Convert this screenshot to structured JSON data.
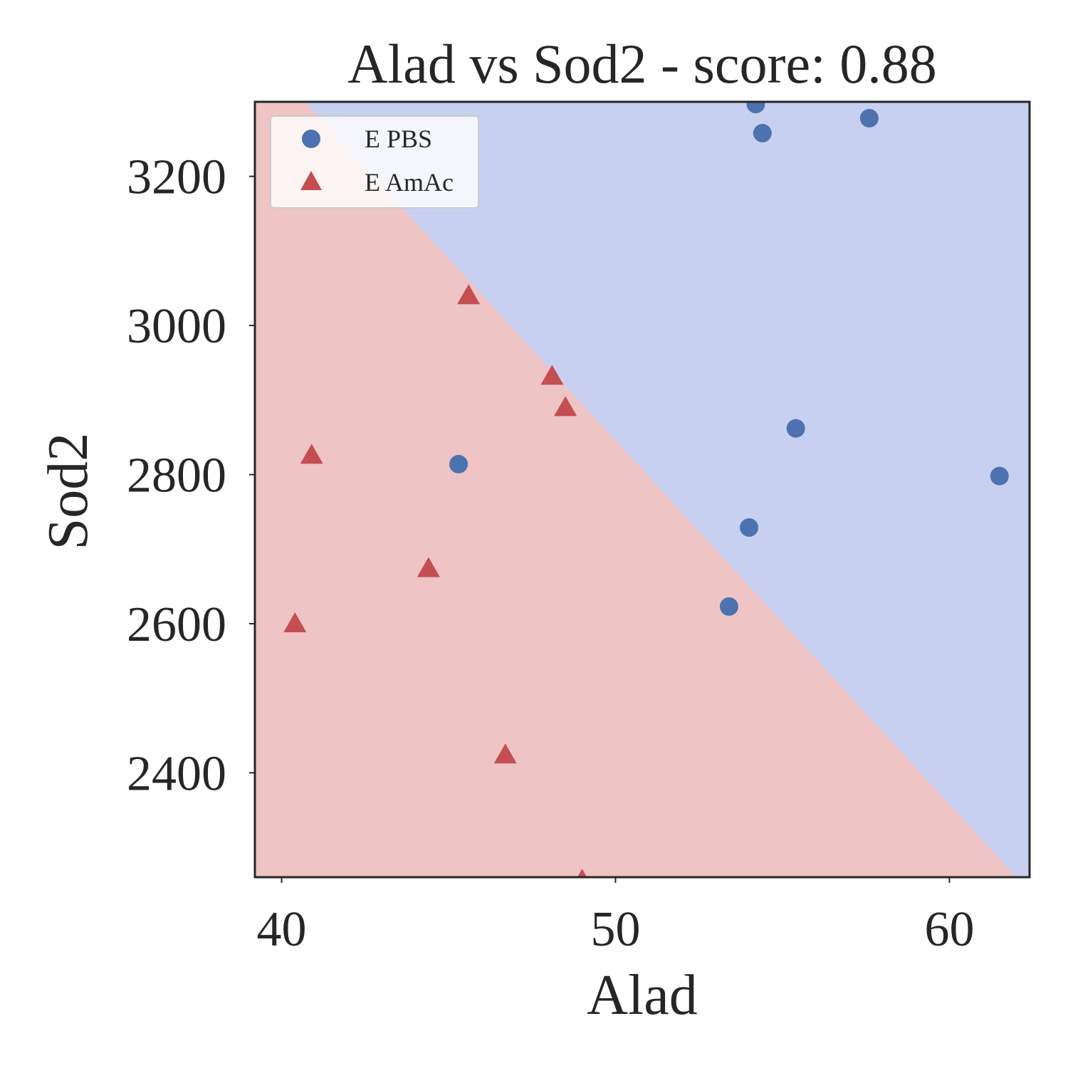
{
  "chart_data": {
    "type": "scatter",
    "title": "Alad vs Sod2 - score: 0.88",
    "xlabel": "Alad",
    "ylabel": "Sod2",
    "xlim": [
      39.2,
      62.4
    ],
    "ylim": [
      2260,
      3300
    ],
    "xticks": [
      40,
      50,
      60
    ],
    "yticks": [
      2400,
      2600,
      2800,
      3000,
      3200
    ],
    "grid": false,
    "legend_position": "top-left",
    "decision_boundary": {
      "from": [
        40.7,
        3300
      ],
      "to": [
        62.0,
        2260
      ],
      "regions": [
        {
          "name": "E PBS",
          "side": "upper-right",
          "color": "#c8d0f1"
        },
        {
          "name": "E AmAc",
          "side": "lower-left",
          "color": "#efc4c4"
        }
      ]
    },
    "series": [
      {
        "name": "E PBS",
        "marker": "circle",
        "color": "#4c72b0",
        "points": [
          [
            54.2,
            3297
          ],
          [
            54.4,
            3258
          ],
          [
            57.6,
            3278
          ],
          [
            55.4,
            2862
          ],
          [
            61.5,
            2798
          ],
          [
            45.3,
            2814
          ],
          [
            54.0,
            2729
          ],
          [
            53.4,
            2623
          ]
        ]
      },
      {
        "name": "E AmAc",
        "marker": "triangle",
        "color": "#c44e52",
        "points": [
          [
            45.6,
            3040
          ],
          [
            48.1,
            2932
          ],
          [
            48.5,
            2890
          ],
          [
            40.9,
            2826
          ],
          [
            44.4,
            2674
          ],
          [
            40.4,
            2600
          ],
          [
            46.7,
            2424
          ],
          [
            49.0,
            2256
          ]
        ]
      }
    ]
  }
}
